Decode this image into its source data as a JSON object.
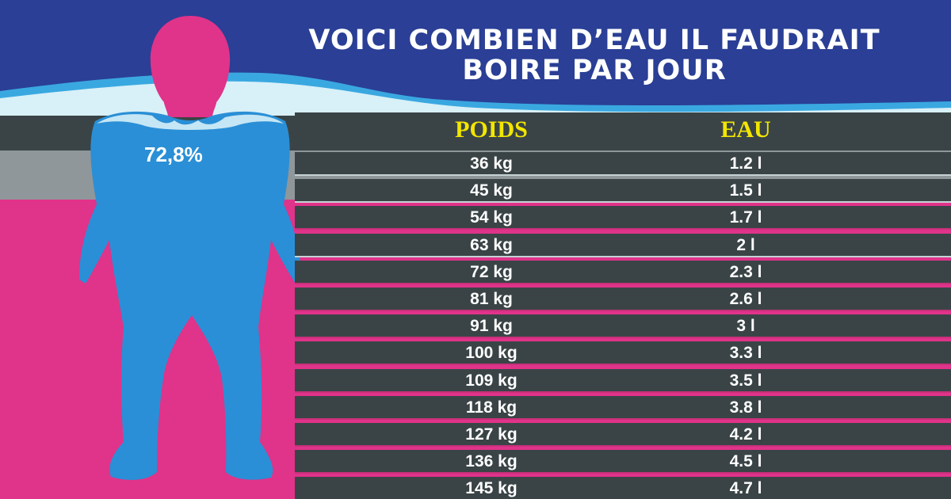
{
  "title": {
    "line1": "VOICI COMBIEN D’EAU IL FAUDRAIT",
    "line2": "BOIRE PAR JOUR"
  },
  "figure": {
    "percentage": "72,8%",
    "colors": {
      "body": "#2a8fd6",
      "head": "#e0338a"
    }
  },
  "table": {
    "headers": {
      "poids": "POIDS",
      "eau": "EAU"
    },
    "rows": [
      {
        "poids": "36 kg",
        "eau": "1.2 l"
      },
      {
        "poids": "45 kg",
        "eau": "1.5 l"
      },
      {
        "poids": "54 kg",
        "eau": "1.7 l"
      },
      {
        "poids": "63 kg",
        "eau": "2 l"
      },
      {
        "poids": "72 kg",
        "eau": "2.3 l"
      },
      {
        "poids": "81 kg",
        "eau": "2.6 l"
      },
      {
        "poids": "91 kg",
        "eau": "3 l"
      },
      {
        "poids": "100 kg",
        "eau": "3.3 l"
      },
      {
        "poids": "109 kg",
        "eau": "3.5 l"
      },
      {
        "poids": "118 kg",
        "eau": "3.8 l"
      },
      {
        "poids": "127 kg",
        "eau": "4.2 l"
      },
      {
        "poids": "136 kg",
        "eau": "4.5 l"
      },
      {
        "poids": "145 kg",
        "eau": "4.7 l"
      }
    ]
  },
  "colors": {
    "banner": "#2a3f95",
    "table_row": "#3a4446",
    "header_text": "#f2e600",
    "pink": "#e0338a"
  }
}
